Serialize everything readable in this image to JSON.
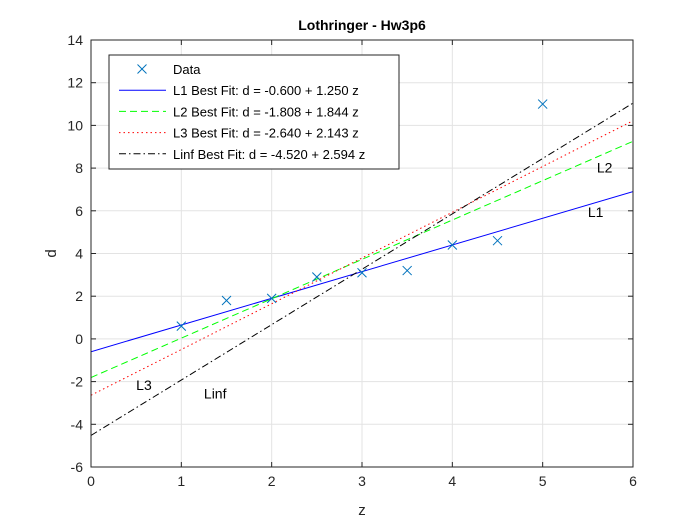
{
  "chart_data": {
    "type": "line",
    "title": "Lothringer - Hw3p6",
    "xlabel": "z",
    "ylabel": "d",
    "xlim": [
      0,
      6
    ],
    "ylim": [
      -6,
      14
    ],
    "xticks": [
      0,
      1,
      2,
      3,
      4,
      5,
      6
    ],
    "yticks": [
      -6,
      -4,
      -2,
      0,
      2,
      4,
      6,
      8,
      10,
      12,
      14
    ],
    "grid": true,
    "legend_position": "top-left",
    "data_series": {
      "name": "Data",
      "marker": "x",
      "color": "#0072BD",
      "x": [
        1,
        1.5,
        2,
        2.5,
        3,
        3.5,
        4,
        4.5,
        5
      ],
      "y": [
        0.6,
        1.8,
        1.9,
        2.9,
        3.1,
        3.2,
        4.4,
        4.6,
        11.0
      ]
    },
    "series": [
      {
        "name": "L1 Best Fit: d = -0.600 + 1.250 z",
        "intercept": -0.6,
        "slope": 1.25,
        "color": "#0000FF",
        "dash": "solid",
        "label": "L1"
      },
      {
        "name": "L2 Best Fit: d = -1.808 + 1.844 z",
        "intercept": -1.808,
        "slope": 1.844,
        "color": "#00FF00",
        "dash": "dashed",
        "label": "L2"
      },
      {
        "name": "L3 Best Fit: d = -2.640 + 2.143 z",
        "intercept": -2.64,
        "slope": 2.143,
        "color": "#FF0000",
        "dash": "dotted",
        "label": "L3"
      },
      {
        "name": "Linf Best Fit: d = -4.520 + 2.594 z",
        "intercept": -4.52,
        "slope": 2.594,
        "color": "#000000",
        "dash": "dashdot",
        "label": "Linf"
      }
    ],
    "annotations": [
      {
        "text": "L1",
        "x": 5.5,
        "y": 5.7
      },
      {
        "text": "L2",
        "x": 5.6,
        "y": 7.8
      },
      {
        "text": "L3",
        "x": 0.5,
        "y": -2.4
      },
      {
        "text": "Linf",
        "x": 1.25,
        "y": -2.8
      }
    ]
  }
}
